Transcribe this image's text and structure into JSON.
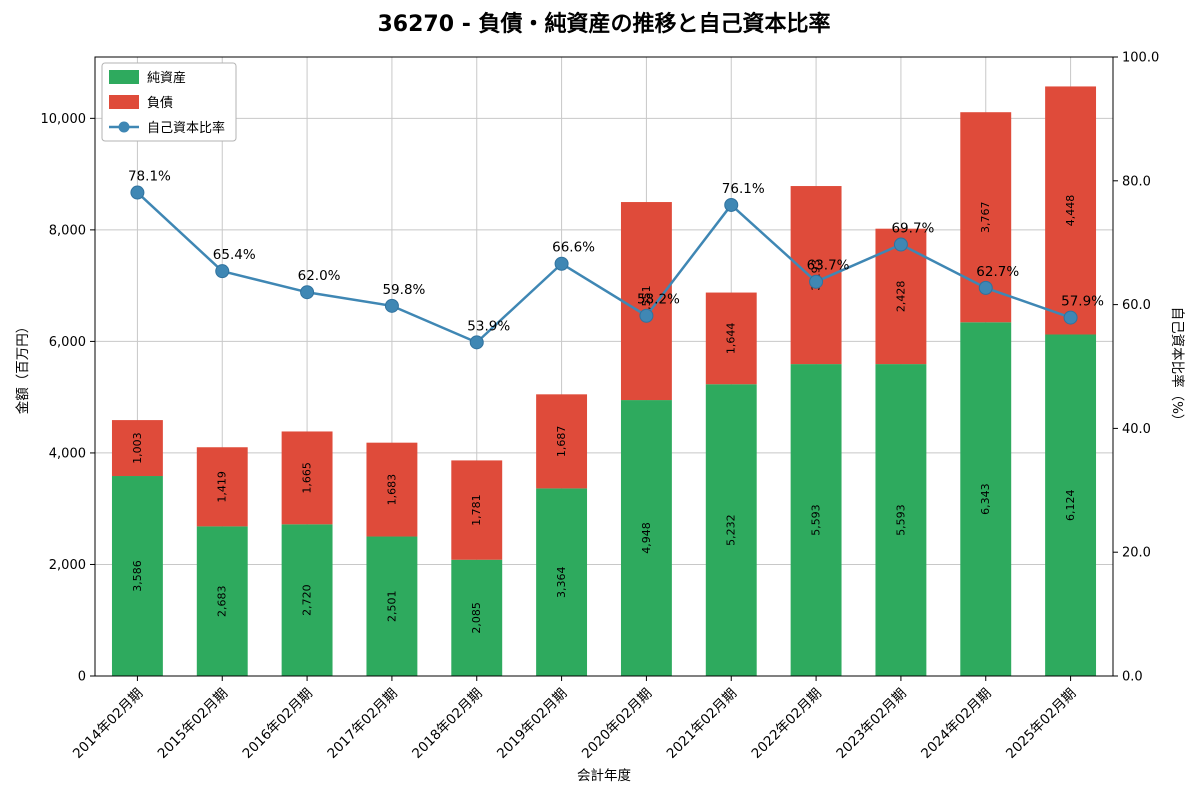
{
  "title": "36270 - 負債・純資産の推移と自己資本比率",
  "chart_data": {
    "type": "bar",
    "subtype": "stacked-bars-with-line",
    "categories": [
      "2014年02月期",
      "2015年02月期",
      "2016年02月期",
      "2017年02月期",
      "2018年02月期",
      "2019年02月期",
      "2020年02月期",
      "2021年02月期",
      "2022年02月期",
      "2023年02月期",
      "2024年02月期",
      "2025年02月期"
    ],
    "series": [
      {
        "name": "純資産",
        "type": "bar",
        "axis": "left",
        "color": "#2eaa5e",
        "values": [
          3586,
          2683,
          2720,
          2501,
          2085,
          3364,
          4948,
          5232,
          5593,
          5593,
          6343,
          6124
        ]
      },
      {
        "name": "負債",
        "type": "bar",
        "axis": "left",
        "color": "#df4b3a",
        "values": [
          1003,
          1419,
          1665,
          1683,
          1781,
          1687,
          3551,
          1644,
          3193,
          2428,
          3767,
          4448
        ]
      },
      {
        "name": "自己資本比率",
        "type": "line",
        "axis": "right",
        "color": "#3f87b4",
        "unit": "%",
        "values": [
          78.1,
          65.4,
          62.0,
          59.8,
          53.9,
          66.6,
          58.2,
          76.1,
          63.7,
          69.7,
          62.7,
          57.9
        ]
      }
    ],
    "xlabel": "会計年度",
    "ylabel_left": "金額（百万円）",
    "ylabel_right": "自己資本比率（%）",
    "ylim_left": [
      0,
      11100
    ],
    "ylim_right": [
      0,
      100
    ],
    "yticks_left": [
      0,
      2000,
      4000,
      6000,
      8000,
      10000
    ],
    "yticks_left_labels": [
      "0",
      "2,000",
      "4,000",
      "6,000",
      "8,000",
      "10,000"
    ],
    "yticks_right": [
      0,
      20,
      40,
      60,
      80,
      100
    ],
    "yticks_right_labels": [
      "0.0",
      "20.0",
      "40.0",
      "60.0",
      "80.0",
      "100.0"
    ],
    "grid": true,
    "legend_position": "upper-left",
    "stacked": true,
    "colors": {
      "equity": "#2eaa5e",
      "liabilities": "#df4b3a",
      "ratio_line": "#3f87b4",
      "grid": "#c8c8c8",
      "spine": "#000000",
      "legend_border": "#b3b3b3"
    }
  }
}
